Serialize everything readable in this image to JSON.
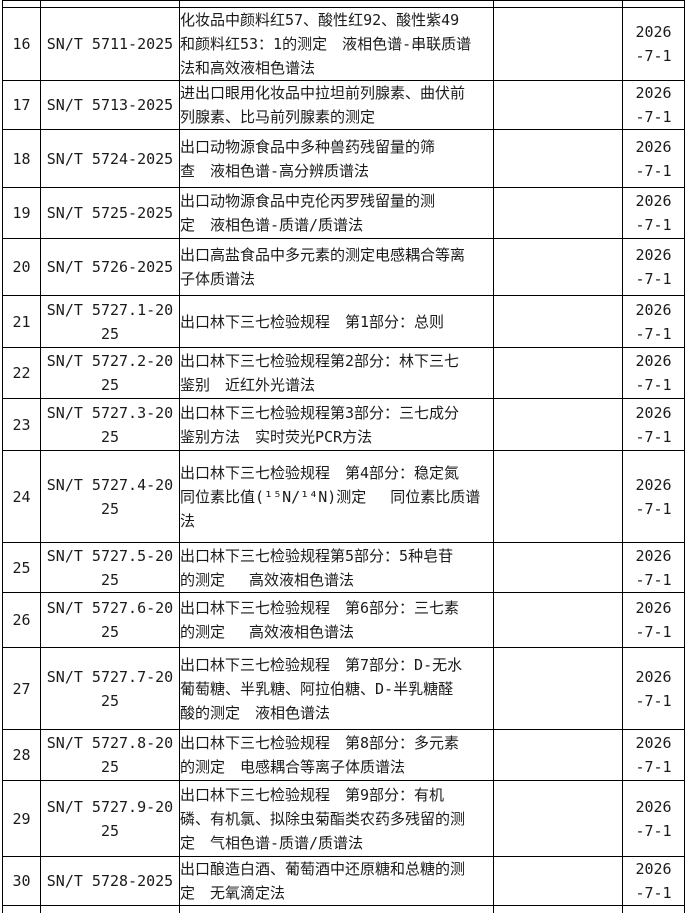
{
  "table": {
    "date_all": "2026-7-1",
    "rows": [
      {
        "no": "16",
        "code": "SN/T 5711-2025",
        "title": "化妆品中颜料红57、酸性红92、酸性紫49\n和颜料红53：1的测定　液相色谱-串联质谱\n法和高效液相色谱法",
        "note": "",
        "date": "2026\n-7-1"
      },
      {
        "no": "17",
        "code": "SN/T 5713-2025",
        "title": "进出口眼用化妆品中拉坦前列腺素、曲伏前\n列腺素、比马前列腺素的测定",
        "note": "",
        "date": "2026\n-7-1"
      },
      {
        "no": "18",
        "code": "SN/T 5724-2025",
        "title": "出口动物源食品中多种兽药残留量的筛\n查　液相色谱-高分辨质谱法",
        "note": "",
        "date": "2026\n-7-1"
      },
      {
        "no": "19",
        "code": "SN/T 5725-2025",
        "title": "出口动物源食品中克伦丙罗残留量的测\n定　液相色谱-质谱/质谱法",
        "note": "",
        "date": "2026\n-7-1"
      },
      {
        "no": "20",
        "code": "SN/T 5726-2025",
        "title": "出口高盐食品中多元素的测定电感耦合等离\n子体质谱法",
        "note": "",
        "date": "2026\n-7-1"
      },
      {
        "no": "21",
        "code": "SN/T 5727.1-20\n25",
        "title": "出口林下三七检验规程　第1部分：总则",
        "note": "",
        "date": "2026\n-7-1"
      },
      {
        "no": "22",
        "code": "SN/T 5727.2-20\n25",
        "title": "出口林下三七检验规程第2部分：林下三七\n鉴别　近红外光谱法",
        "note": "",
        "date": "2026\n-7-1"
      },
      {
        "no": "23",
        "code": "SN/T 5727.3-20\n25",
        "title": "出口林下三七检验规程第3部分：三七成分\n鉴别方法　实时荧光PCR方法",
        "note": "",
        "date": "2026\n-7-1"
      },
      {
        "no": "24",
        "code": "SN/T 5727.4-20\n25",
        "title": "出口林下三七检验规程　第4部分：稳定氮\n同位素比值(¹⁵N/¹⁴N)测定　 同位素比质谱\n法",
        "note": "",
        "date": "2026\n-7-1"
      },
      {
        "no": "25",
        "code": "SN/T 5727.5-20\n25",
        "title": "出口林下三七检验规程第5部分：5种皂苷\n的测定　 高效液相色谱法",
        "note": "",
        "date": "2026\n-7-1"
      },
      {
        "no": "26",
        "code": "SN/T 5727.6-20\n25",
        "title": "出口林下三七检验规程　第6部分：三七素\n的测定　 高效液相色谱法",
        "note": "",
        "date": "2026\n-7-1"
      },
      {
        "no": "27",
        "code": "SN/T 5727.7-20\n25",
        "title": "出口林下三七检验规程　第7部分：D-无水\n葡萄糖、半乳糖、阿拉伯糖、D-半乳糖醛\n酸的测定　液相色谱法",
        "note": "",
        "date": "2026\n-7-1"
      },
      {
        "no": "28",
        "code": "SN/T 5727.8-20\n25",
        "title": "出口林下三七检验规程　第8部分：多元素\n的测定　电感耦合等离子体质谱法",
        "note": "",
        "date": "2026\n-7-1"
      },
      {
        "no": "29",
        "code": "SN/T 5727.9-20\n25",
        "title": "出口林下三七检验规程　第9部分：有机\n磷、有机氯、拟除虫菊酯类农药多残留的测\n定　气相色谱-质谱/质谱法",
        "note": "",
        "date": "2026\n-7-1"
      },
      {
        "no": "30",
        "code": "SN/T 5728-2025",
        "title": "出口酿造白酒、葡萄酒中还原糖和总糖的测\n定　无氧滴定法",
        "note": "",
        "date": "2026\n-7-1"
      }
    ]
  }
}
